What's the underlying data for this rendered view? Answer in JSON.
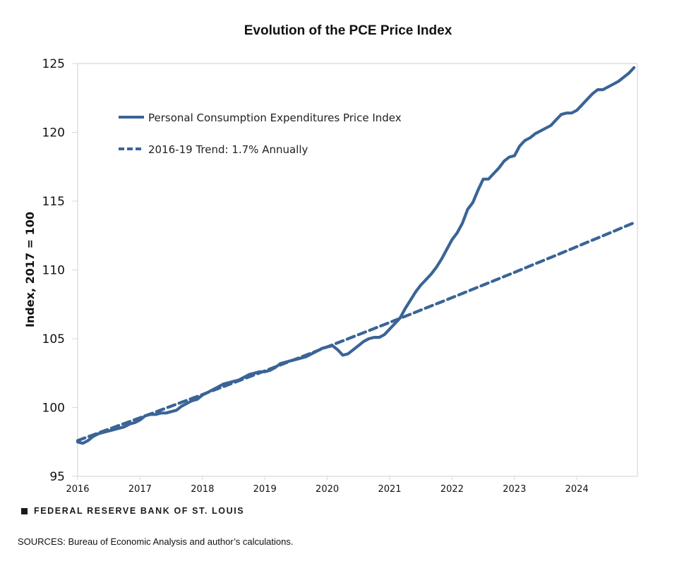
{
  "chart_data": {
    "type": "line",
    "title": "Evolution of the PCE Price Index",
    "xlabel": "",
    "ylabel": "Index, 2017 = 100",
    "ylim": [
      95,
      125
    ],
    "yticks": [
      95,
      100,
      105,
      110,
      115,
      120,
      125
    ],
    "xlim": [
      2016.0,
      2024.917
    ],
    "xticks": [
      2016,
      2017,
      2018,
      2019,
      2020,
      2021,
      2022,
      2023,
      2024
    ],
    "xtick_labels": [
      "2016",
      "2017",
      "2018",
      "2019",
      "2020",
      "2021",
      "2022",
      "2023",
      "2024"
    ],
    "grid": false,
    "legend_position": "top-left",
    "x_start": 2016.0,
    "x_step_years": 0.08333,
    "series": [
      {
        "name": "Personal Consumption Expenditures Price Index",
        "style": "solid",
        "color": "#3a6496",
        "values": [
          97.5,
          97.4,
          97.6,
          97.9,
          98.1,
          98.2,
          98.3,
          98.4,
          98.5,
          98.6,
          98.8,
          98.9,
          99.1,
          99.4,
          99.5,
          99.5,
          99.6,
          99.6,
          99.7,
          99.8,
          100.1,
          100.3,
          100.5,
          100.6,
          100.9,
          101.1,
          101.3,
          101.5,
          101.7,
          101.8,
          101.9,
          102.0,
          102.2,
          102.4,
          102.5,
          102.6,
          102.6,
          102.7,
          102.9,
          103.2,
          103.3,
          103.4,
          103.5,
          103.6,
          103.7,
          103.9,
          104.1,
          104.3,
          104.4,
          104.5,
          104.2,
          103.8,
          103.9,
          104.2,
          104.5,
          104.8,
          105.0,
          105.1,
          105.1,
          105.3,
          105.7,
          106.1,
          106.5,
          107.2,
          107.8,
          108.4,
          108.9,
          109.3,
          109.7,
          110.2,
          110.8,
          111.5,
          112.2,
          112.7,
          113.4,
          114.4,
          114.9,
          115.8,
          116.6,
          116.6,
          117.0,
          117.4,
          117.9,
          118.2,
          118.3,
          119.0,
          119.4,
          119.6,
          119.9,
          120.1,
          120.3,
          120.5,
          120.9,
          121.3,
          121.4,
          121.4,
          121.6,
          122.0,
          122.4,
          122.8,
          123.1,
          123.1,
          123.3,
          123.5,
          123.7,
          124.0,
          124.3,
          124.7
        ]
      },
      {
        "name": "2016-19 Trend: 1.7% Annually",
        "style": "dashed",
        "color": "#3a6496",
        "start_value": 97.6,
        "annual_growth_rate": 0.017,
        "x_range": [
          2016.0,
          2024.917
        ],
        "end_value": 113.4
      }
    ]
  },
  "footer": {
    "brand": "FEDERAL RESERVE BANK OF ST. LOUIS",
    "sources": "SOURCES: Bureau of Economic Analysis and author’s calculations."
  }
}
